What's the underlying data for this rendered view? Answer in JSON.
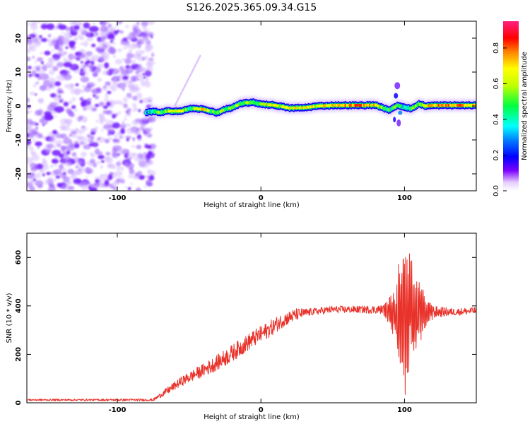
{
  "title": "S126.2025.365.09.34.G15",
  "colors": {
    "snr_line": "#e8322a",
    "ridge_low": "#1a00ff",
    "ridge_mid": "#00e0ff",
    "ridge_high": "#ff2a2a",
    "noise": "#8a3cff"
  },
  "chart_data": [
    {
      "type": "heatmap",
      "name": "spectrogram",
      "xlabel": "Height of straight line (km)",
      "ylabel": "Frequency (Hz)",
      "xlim": [
        -163,
        150
      ],
      "ylim": [
        -25,
        25
      ],
      "xticks": [
        -100,
        0,
        100
      ],
      "xtick_labels": [
        "-100",
        "0",
        "100"
      ],
      "yticks": [
        -20,
        -10,
        0,
        10,
        20
      ],
      "ytick_labels": [
        "-20",
        "-10",
        "0",
        "10",
        "20"
      ],
      "noise_region_x": [
        -163,
        -78
      ],
      "ridge": {
        "x": [
          -80,
          -75,
          -70,
          -65,
          -60,
          -55,
          -50,
          -45,
          -40,
          -35,
          -30,
          -25,
          -20,
          -15,
          -10,
          -5,
          0,
          10,
          20,
          30,
          40,
          50,
          60,
          70,
          80,
          85,
          90,
          95,
          100,
          105,
          110,
          115,
          120,
          130,
          140,
          150
        ],
        "frequency": [
          -2,
          -1.5,
          -2,
          -1.5,
          -1.5,
          -1.5,
          -0.8,
          -0.8,
          -1,
          -1.5,
          -2,
          -1,
          -0.5,
          0.5,
          1,
          1,
          0.6,
          0.2,
          -0.6,
          -0.5,
          0,
          0.2,
          0.2,
          0.2,
          0.3,
          -0.6,
          -1.2,
          0.2,
          -0.3,
          -0.8,
          0.6,
          0,
          0.2,
          0.2,
          0.2,
          0.2
        ],
        "amplitude": [
          0.3,
          0.5,
          0.55,
          0.6,
          0.7,
          0.65,
          0.5,
          0.6,
          0.7,
          0.55,
          0.6,
          0.55,
          0.6,
          0.5,
          0.6,
          0.55,
          0.6,
          0.7,
          0.65,
          0.7,
          0.65,
          0.7,
          0.75,
          0.8,
          0.7,
          0.55,
          0.45,
          0.5,
          0.4,
          0.55,
          0.6,
          0.7,
          0.75,
          0.8,
          0.8,
          0.75
        ]
      },
      "faint_streak": {
        "x": [
          -60,
          -42
        ],
        "frequency": [
          0,
          15
        ]
      },
      "colorbar": {
        "label": "Normalized spectral amplitude",
        "range": [
          0,
          0.95
        ],
        "ticks": [
          0,
          0.2,
          0.4,
          0.6,
          0.8
        ],
        "tick_labels": [
          "0.0",
          "0.2",
          "0.4",
          "0.6",
          "0.8"
        ]
      }
    },
    {
      "type": "line",
      "name": "snr",
      "xlabel": "Height of straight line (km)",
      "ylabel": "SNR (10 * v/v)",
      "xlim": [
        -163,
        150
      ],
      "ylim": [
        0,
        700
      ],
      "xticks": [
        -100,
        0,
        100
      ],
      "xtick_labels": [
        "-100",
        "0",
        "100"
      ],
      "yticks": [
        0,
        200,
        400,
        600
      ],
      "ytick_labels": [
        "0",
        "200",
        "400",
        "600"
      ],
      "envelope": {
        "x": [
          -163,
          -120,
          -90,
          -75,
          -65,
          -55,
          -45,
          -35,
          -25,
          -15,
          -5,
          5,
          15,
          25,
          35,
          50,
          70,
          85,
          90,
          95,
          100,
          102,
          105,
          110,
          115,
          120,
          135,
          150
        ],
        "baseline": [
          12,
          12,
          12,
          12,
          50,
          90,
          120,
          150,
          185,
          225,
          265,
          300,
          340,
          365,
          375,
          385,
          385,
          385,
          375,
          370,
          360,
          360,
          365,
          370,
          375,
          375,
          375,
          380
        ],
        "noise": [
          4,
          4,
          5,
          5,
          15,
          20,
          25,
          30,
          35,
          35,
          35,
          35,
          30,
          25,
          15,
          15,
          15,
          18,
          60,
          150,
          300,
          250,
          200,
          120,
          60,
          25,
          15,
          15
        ]
      }
    }
  ]
}
